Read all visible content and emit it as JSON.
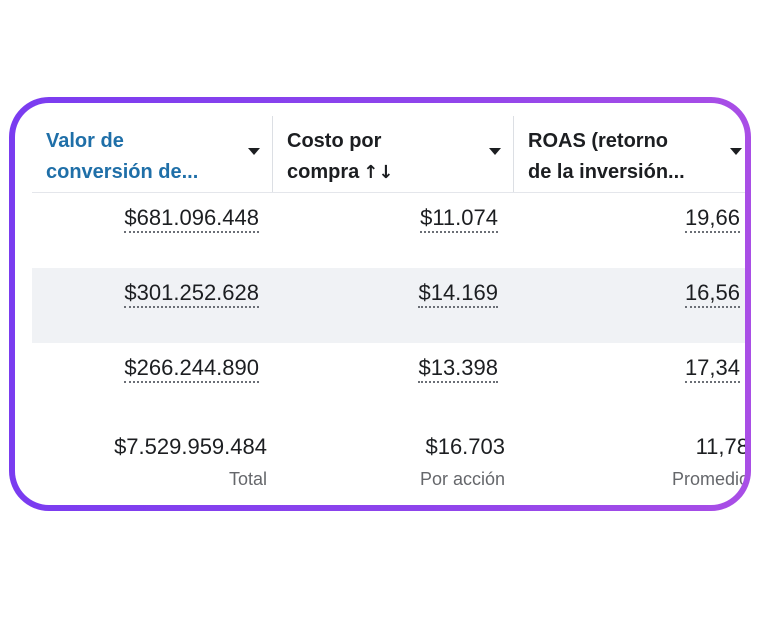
{
  "table": {
    "columns": [
      {
        "line1": "Valor de",
        "line2": "conversión de...",
        "sort_icon": ""
      },
      {
        "line1": "Costo por",
        "line2": "compra",
        "sort_icon": "↑↓"
      },
      {
        "line1": "ROAS (retorno",
        "line2": "de la inversión...",
        "sort_icon": ""
      }
    ],
    "rows": [
      {
        "conversion_value": "$681.096.448",
        "cost_per_purchase": "$11.074",
        "roas": "19,66"
      },
      {
        "conversion_value": "$301.252.628",
        "cost_per_purchase": "$14.169",
        "roas": "16,56"
      },
      {
        "conversion_value": "$266.244.890",
        "cost_per_purchase": "$13.398",
        "roas": "17,34"
      }
    ],
    "totals": [
      {
        "value": "$7.529.959.484",
        "label": "Total"
      },
      {
        "value": "$16.703",
        "label": "Por acción"
      },
      {
        "value": "11,78",
        "label": "Promedio"
      }
    ]
  },
  "colors": {
    "frame_gradient_start": "#7a3cf0",
    "frame_gradient_end": "#a94ee6",
    "active_header": "#1f6fa8",
    "alt_row": "#f0f2f5"
  },
  "icons": [
    "caret-down-icon",
    "sort-arrows-icon"
  ]
}
